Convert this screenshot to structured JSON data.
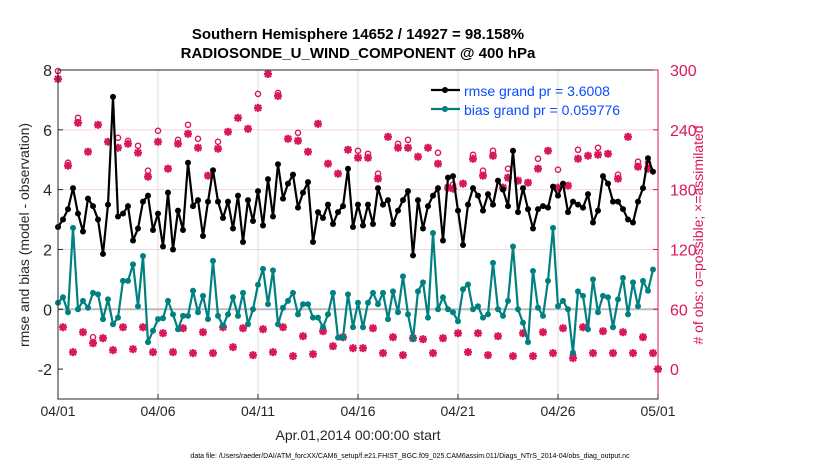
{
  "chart_data": {
    "type": "line",
    "title": [
      "Southern Hemisphere 14652 / 14927 = 98.158%",
      "RADIOSONDE_U_WIND_COMPONENT @ 400 hPa"
    ],
    "xlabel": "Apr.01,2014 00:00:00 start",
    "ylabel": "rmse and bias (model - observation)",
    "ylabel_right": "# of obs: o=possible; ×=assimilated",
    "footer": "data file: /Users/raeder/DAI/ATM_forcXX/CAM6_setup/f.e21.FHIST_BGC.f09_025.CAM6assim.011/Diags_NTrS_2014-04/obs_diag_output.nc",
    "x_unit": "days since 04/01 00Z, 6-hourly",
    "xlim": [
      0,
      30
    ],
    "xticks": [
      0,
      5,
      10,
      15,
      20,
      25,
      30
    ],
    "xtick_labels": [
      "04/01",
      "04/06",
      "04/11",
      "04/16",
      "04/21",
      "04/26",
      "05/01"
    ],
    "ylim": [
      -3,
      8
    ],
    "yticks": [
      -2,
      0,
      2,
      4,
      6,
      8
    ],
    "ytick_labels": [
      "-2",
      "0",
      "2",
      "4",
      "6",
      "8"
    ],
    "ylim_right": [
      -30,
      300
    ],
    "yticks_right": [
      0,
      60,
      120,
      180,
      240,
      300
    ],
    "ytick_labels_right": [
      "0",
      "60",
      "120",
      "180",
      "240",
      "300"
    ],
    "legend_position": "top-right",
    "colors": {
      "rmse": "#000000",
      "bias": "#008080",
      "counts": "#d8185a",
      "legend_text": "#0a4cff",
      "grid": "#dddddd",
      "zero": "#bbbbbb"
    },
    "series": [
      {
        "name": "rmse grand pr = 3.6008",
        "values": [
          2.75,
          3.0,
          3.35,
          4.05,
          3.2,
          2.6,
          3.7,
          3.45,
          3.0,
          1.85,
          3.5,
          7.1,
          3.1,
          3.2,
          3.45,
          2.3,
          2.7,
          3.6,
          3.8,
          2.65,
          3.2,
          2.1,
          3.9,
          2.0,
          3.3,
          2.65,
          4.9,
          3.45,
          3.65,
          2.45,
          3.6,
          4.65,
          3.6,
          3.05,
          3.6,
          2.7,
          3.8,
          2.25,
          3.65,
          2.95,
          3.95,
          2.8,
          4.35,
          3.1,
          4.85,
          3.7,
          4.2,
          4.5,
          3.4,
          3.9,
          4.25,
          2.25,
          3.25,
          3.05,
          3.5,
          2.85,
          3.25,
          3.45,
          4.7,
          2.75,
          3.5,
          2.8,
          3.5,
          2.85,
          4.05,
          3.5,
          3.65,
          2.85,
          3.3,
          3.65,
          3.95,
          1.8,
          3.65,
          2.7,
          3.45,
          3.8,
          4.05,
          2.3,
          4.4,
          4.45,
          3.3,
          2.15,
          3.5,
          4.05,
          3.8,
          3.3,
          3.85,
          3.5,
          4.3,
          4.0,
          3.45,
          5.3,
          3.25,
          4.05,
          3.35,
          2.7,
          3.35,
          3.45,
          3.4,
          4.1,
          3.8,
          4.2,
          3.25,
          3.6,
          3.5,
          3.4,
          3.85,
          2.9,
          3.3,
          4.45,
          4.2,
          3.6,
          3.6,
          3.35,
          3.0,
          2.9,
          3.6,
          4.05,
          5.05,
          4.6
        ]
      },
      {
        "name": "bias grand pr = 0.059776",
        "values": [
          0.22,
          0.4,
          -0.1,
          2.72,
          0.0,
          0.28,
          0.05,
          0.55,
          0.5,
          -0.33,
          0.33,
          -0.5,
          -0.28,
          0.95,
          0.95,
          1.5,
          0.1,
          1.78,
          -1.1,
          -0.72,
          -0.33,
          -0.3,
          0.28,
          -0.17,
          -0.67,
          -0.22,
          -0.22,
          0.62,
          -0.1,
          0.45,
          -0.33,
          1.62,
          -0.22,
          -0.55,
          -0.17,
          0.4,
          -0.22,
          0.55,
          -0.5,
          0.0,
          0.82,
          1.35,
          0.17,
          1.3,
          -0.5,
          0.05,
          0.28,
          0.55,
          -0.17,
          0.17,
          0.17,
          -0.28,
          -0.28,
          -0.6,
          -0.17,
          0.55,
          -0.95,
          -0.95,
          0.5,
          -0.6,
          0.22,
          -0.6,
          0.22,
          0.55,
          0.17,
          0.55,
          -0.33,
          0.6,
          -0.1,
          1.1,
          -0.17,
          -1.0,
          0.6,
          0.9,
          -0.28,
          2.55,
          0.0,
          0.4,
          0.0,
          -0.1,
          -0.4,
          0.67,
          0.83,
          0.0,
          0.1,
          -0.28,
          -0.17,
          1.55,
          0.0,
          -0.22,
          0.28,
          2.1,
          0.0,
          -0.45,
          -1.1,
          1.28,
          0.05,
          -0.22,
          0.95,
          2.72,
          0.1,
          0.28,
          0.0,
          -1.45,
          0.6,
          0.45,
          -0.67,
          1.0,
          -0.1,
          0.45,
          0.4,
          -0.6,
          0.33,
          1.05,
          -0.17,
          0.9,
          0.1,
          0.95,
          0.62,
          1.33
        ]
      },
      {
        "name": "obs possible",
        "axis": "right",
        "values": [
          299,
          42,
          207,
          17,
          252,
          37,
          218,
          32,
          245,
          31,
          228,
          19,
          232,
          42,
          229,
          20,
          224,
          42,
          199,
          17,
          239,
          36,
          201,
          17,
          230,
          41,
          245,
          16,
          231,
          37,
          194,
          16,
          228,
          42,
          238,
          22,
          252,
          41,
          241,
          14,
          276,
          40,
          296,
          17,
          277,
          42,
          231,
          13,
          237,
          33,
          218,
          15,
          246,
          38,
          206,
          23,
          196,
          32,
          220,
          21,
          219,
          21,
          216,
          41,
          196,
          16,
          233,
          32,
          226,
          14,
          230,
          31,
          213,
          30,
          222,
          16,
          217,
          31,
          182,
          185,
          36,
          186,
          17,
          215,
          36,
          199,
          14,
          219,
          33,
          182,
          201,
          13,
          189,
          36,
          187,
          13,
          211,
          37,
          219,
          16,
          200,
          41,
          184,
          14,
          220,
          42,
          214,
          16,
          222,
          38,
          216,
          16,
          195,
          37,
          233,
          16,
          208,
          32,
          207,
          16,
          0
        ]
      },
      {
        "name": "obs assimilated",
        "axis": "right",
        "values": [
          291,
          42,
          204,
          17,
          247,
          37,
          218,
          26,
          245,
          31,
          228,
          19,
          222,
          42,
          226,
          20,
          217,
          42,
          193,
          17,
          228,
          36,
          201,
          17,
          226,
          41,
          236,
          16,
          222,
          37,
          194,
          16,
          221,
          42,
          238,
          22,
          252,
          41,
          241,
          14,
          262,
          40,
          296,
          17,
          274,
          42,
          231,
          13,
          229,
          33,
          218,
          15,
          246,
          38,
          206,
          23,
          196,
          32,
          220,
          21,
          212,
          21,
          212,
          41,
          191,
          16,
          233,
          32,
          222,
          14,
          222,
          31,
          213,
          30,
          222,
          16,
          206,
          31,
          182,
          181,
          36,
          186,
          17,
          211,
          36,
          194,
          14,
          214,
          33,
          182,
          192,
          13,
          189,
          36,
          187,
          13,
          201,
          37,
          219,
          16,
          182,
          41,
          184,
          11,
          211,
          42,
          214,
          16,
          215,
          38,
          216,
          16,
          191,
          37,
          233,
          16,
          203,
          32,
          201,
          16,
          0
        ]
      }
    ]
  }
}
